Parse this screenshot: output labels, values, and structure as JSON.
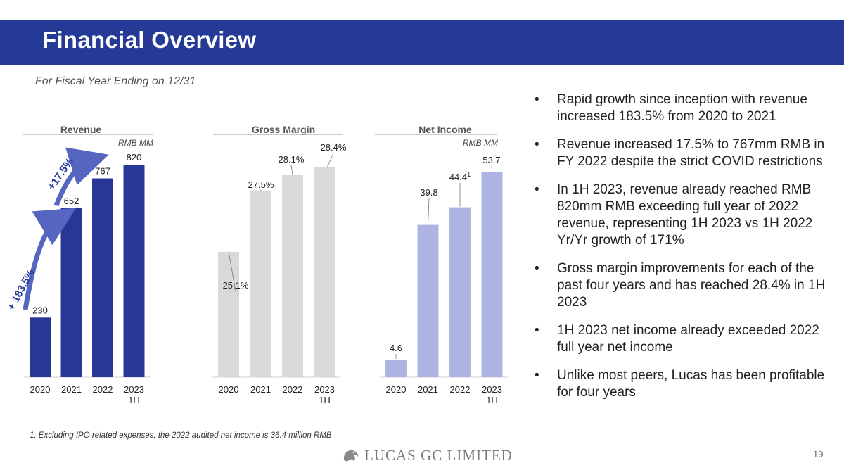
{
  "header": {
    "title": "Financial Overview",
    "subtitle": "For Fiscal Year Ending on 12/31"
  },
  "bullets": [
    "Rapid growth since inception with revenue increased 183.5% from 2020 to 2021",
    "Revenue increased 17.5% to 767mm RMB in FY 2022 despite the strict COVID restrictions",
    "In 1H 2023, revenue already reached RMB 820mm RMB exceeding full year of 2022 revenue, representing 1H 2023 vs 1H 2022 Yr/Yr growth of 171%",
    "Gross margin improvements for each of the past four years and has reached 28.4% in 1H 2023",
    "1H 2023 net income already exceeded 2022 full year net income",
    "Unlike most peers, Lucas has been profitable for four years"
  ],
  "bullet_symbol": "•",
  "footnote": "1. Excluding IPO related expenses, the 2022 audited net income is 36.4 million RMB",
  "logo": {
    "text": "LUCAS GC LIMITED",
    "icon": "dragon-logo-icon"
  },
  "page_number": "19",
  "colors": {
    "title_bar": "#253a96",
    "revenue_bar": "#263795",
    "margin_bar": "#d9d9d9",
    "income_bar": "#adb4e3",
    "arrow": "#5566c0"
  },
  "chart_data": [
    {
      "type": "bar",
      "title": "Revenue",
      "unit": "RMB MM",
      "categories": [
        "2020",
        "2021",
        "2022",
        "2023\n1H"
      ],
      "values": [
        230,
        652,
        767,
        820
      ],
      "labels": [
        "230",
        "652",
        "767",
        "820"
      ],
      "annotations": [
        "+ 183.5%",
        "+17.5%"
      ],
      "legend": null
    },
    {
      "type": "bar",
      "title": "Gross Margin",
      "unit": "",
      "categories": [
        "2020",
        "2021",
        "2022",
        "2023\n1H"
      ],
      "values": [
        25.1,
        27.5,
        28.1,
        28.4
      ],
      "labels": [
        "25.1%",
        "27.5%",
        "28.1%",
        "28.4%"
      ],
      "legend": null
    },
    {
      "type": "bar",
      "title": "Net Income",
      "unit": "RMB MM",
      "categories": [
        "2020",
        "2021",
        "2022",
        "2023\n1H"
      ],
      "values": [
        4.6,
        39.8,
        44.4,
        53.7
      ],
      "labels": [
        "4.6",
        "39.8",
        "44.4",
        "53.7"
      ],
      "label_superscripts": [
        "",
        "",
        "1",
        ""
      ],
      "legend": null
    }
  ]
}
